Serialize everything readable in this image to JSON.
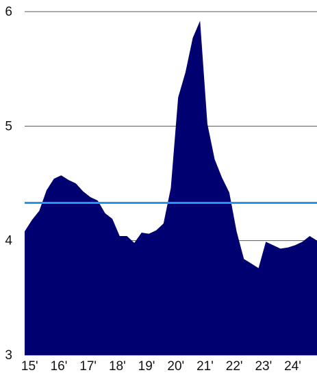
{
  "chart_data": {
    "type": "area",
    "title": "",
    "xlabel": "",
    "ylabel": "",
    "ylim": [
      3,
      6
    ],
    "y_ticks": [
      {
        "value": 3,
        "label": "3"
      },
      {
        "value": 4,
        "label": "4"
      },
      {
        "value": 5,
        "label": "5"
      },
      {
        "value": 6,
        "label": "6"
      }
    ],
    "x_ticks": [
      {
        "value": 2015,
        "label": "15'"
      },
      {
        "value": 2016,
        "label": "16'"
      },
      {
        "value": 2017,
        "label": "17'"
      },
      {
        "value": 2018,
        "label": "18'"
      },
      {
        "value": 2019,
        "label": "19'"
      },
      {
        "value": 2020,
        "label": "20'"
      },
      {
        "value": 2021,
        "label": "21'"
      },
      {
        "value": 2022,
        "label": "22'"
      },
      {
        "value": 2023,
        "label": "23'"
      },
      {
        "value": 2024,
        "label": "24'"
      }
    ],
    "xlim": [
      2014.83,
      2024.83
    ],
    "grid": true,
    "series": [
      {
        "color": "#000070",
        "x": [
          2014.83,
          2015.08,
          2015.33,
          2015.58,
          2015.83,
          2016.08,
          2016.33,
          2016.58,
          2016.83,
          2017.08,
          2017.33,
          2017.58,
          2017.83,
          2018.08,
          2018.33,
          2018.58,
          2018.83,
          2019.08,
          2019.33,
          2019.58,
          2019.83,
          2020.08,
          2020.33,
          2020.58,
          2020.83,
          2021.08,
          2021.33,
          2021.58,
          2021.83,
          2022.08,
          2022.33,
          2022.58,
          2022.83,
          2023.08,
          2023.33,
          2023.58,
          2023.83,
          2024.08,
          2024.33,
          2024.58,
          2024.83
        ],
        "values": [
          4.08,
          4.18,
          4.26,
          4.44,
          4.54,
          4.57,
          4.53,
          4.5,
          4.43,
          4.38,
          4.35,
          4.24,
          4.19,
          4.04,
          4.04,
          3.98,
          4.07,
          4.06,
          4.09,
          4.15,
          4.46,
          5.25,
          5.47,
          5.77,
          5.92,
          5.02,
          4.71,
          4.55,
          4.42,
          4.08,
          3.84,
          3.8,
          3.76,
          3.99,
          3.96,
          3.93,
          3.94,
          3.96,
          3.99,
          4.04,
          4.0
        ]
      }
    ],
    "reference_line": {
      "value": 4.33,
      "color": "#2196f3"
    },
    "grid_color": "#555555",
    "area_color": "#000070"
  }
}
